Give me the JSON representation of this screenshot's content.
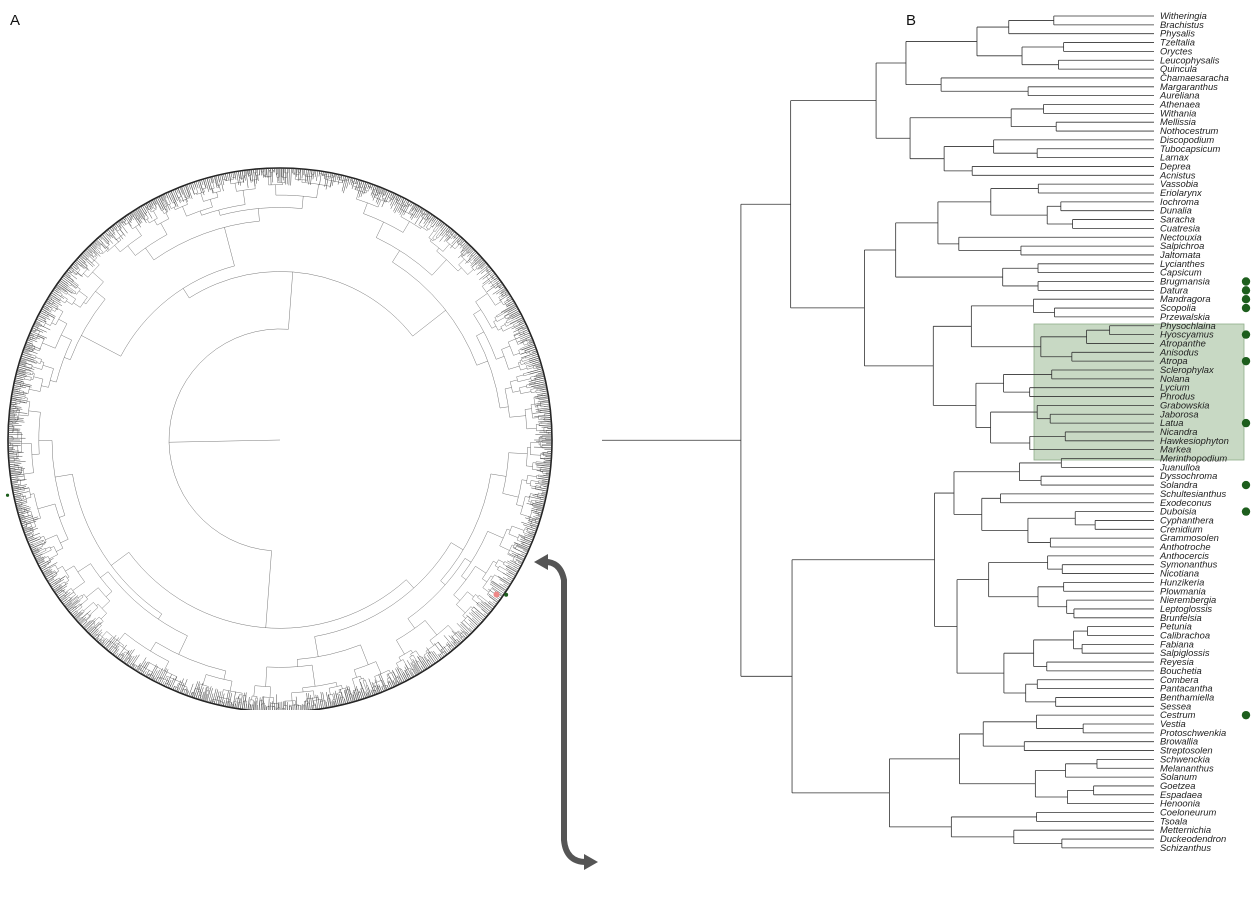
{
  "panels": {
    "a": "A",
    "b": "B"
  },
  "colors": {
    "highlight": "#c8d9c4",
    "marker": "#1d5e1d",
    "arrow": "#555555"
  },
  "taxa": [
    "Witheringia",
    "Brachistus",
    "Physalis",
    "Tzeltalia",
    "Oryctes",
    "Leucophysalis",
    "Quincula",
    "Chamaesaracha",
    "Margaranthus",
    "Aureliana",
    "Athenaea",
    "Withania",
    "Mellissia",
    "Nothocestrum",
    "Discopodium",
    "Tubocapsicum",
    "Larnax",
    "Deprea",
    "Acnistus",
    "Vassobia",
    "Eriolarynx",
    "Iochroma",
    "Dunalia",
    "Saracha",
    "Cuatresia",
    "Nectouxia",
    "Salpichroa",
    "Jaltomata",
    "Lycianthes",
    "Capsicum",
    "Brugmansia",
    "Datura",
    "Mandragora",
    "Scopolia",
    "Przewalskia",
    "Physochlaina",
    "Hyoscyamus",
    "Atropanthe",
    "Anisodus",
    "Atropa",
    "Sclerophylax",
    "Nolana",
    "Lycium",
    "Phrodus",
    "Grabowskia",
    "Jaborosa",
    "Latua",
    "Nicandra",
    "Hawkesiophyton",
    "Markea",
    "Merinthopodium",
    "Juanulloa",
    "Dyssochroma",
    "Solandra",
    "Schultesianthus",
    "Exodeconus",
    "Duboisia",
    "Cyphanthera",
    "Crenidium",
    "Grammosolen",
    "Anthotroche",
    "Anthocercis",
    "Symonanthus",
    "Nicotiana",
    "Hunzikeria",
    "Plowmania",
    "Nierembergia",
    "Leptoglossis",
    "Brunfelsia",
    "Petunia",
    "Calibrachoa",
    "Fabiana",
    "Salpiglossis",
    "Reyesia",
    "Bouchetia",
    "Combera",
    "Pantacantha",
    "Benthamiella",
    "Sessea",
    "Cestrum",
    "Vestia",
    "Protoschwenkia",
    "Browallia",
    "Streptosolen",
    "Schwenckia",
    "Melananthus",
    "Solanum",
    "Goetzea",
    "Espadaea",
    "Henoonia",
    "Coeloneurum",
    "Tsoala",
    "Metternichia",
    "Duckeodendron",
    "Schizanthus"
  ],
  "marked_taxa": [
    "Brugmansia",
    "Datura",
    "Mandragora",
    "Scopolia",
    "Hyoscyamus",
    "Atropa",
    "Latua",
    "Solandra",
    "Duboisia",
    "Cestrum"
  ],
  "highlighted_clade": [
    "Scopolia",
    "Jaborosa"
  ]
}
